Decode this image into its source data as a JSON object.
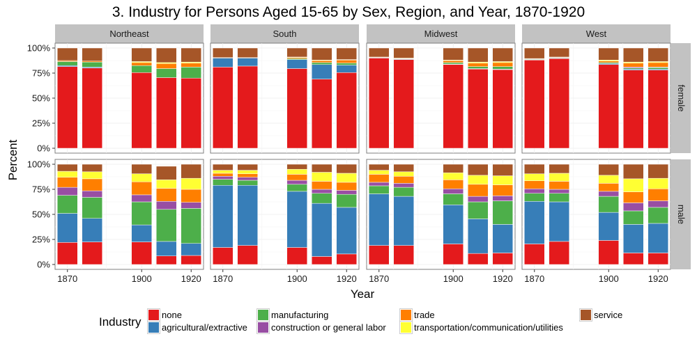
{
  "chart_data": {
    "type": "bar",
    "stacked": true,
    "title": "3. Industry for Persons Aged 15-65 by Sex, Region, and Year, 1870-1920",
    "xlabel": "Year",
    "ylabel": "Percent",
    "ylim": [
      0,
      1
    ],
    "yticks": [
      "0%",
      "25%",
      "50%",
      "75%",
      "100%"
    ],
    "xticks": [
      "1870",
      "1900",
      "1920"
    ],
    "years": [
      1870,
      1880,
      1900,
      1910,
      1920
    ],
    "columns": [
      "Northeast",
      "South",
      "Midwest",
      "West"
    ],
    "rows": [
      "female",
      "male"
    ],
    "grid": true,
    "legend": {
      "title": "Industry",
      "position": "bottom",
      "order": [
        "none",
        "agricultural/extractive",
        "manufacturing",
        "construction or general labor",
        "trade",
        "transportation/communication/utilities",
        "service"
      ]
    },
    "industries": [
      {
        "name": "none",
        "color": "#e41a1c"
      },
      {
        "name": "agricultural/extractive",
        "color": "#377eb8"
      },
      {
        "name": "manufacturing",
        "color": "#4daf4a"
      },
      {
        "name": "construction or general labor",
        "color": "#984ea3"
      },
      {
        "name": "trade",
        "color": "#ff7f00"
      },
      {
        "name": "transportation/communication/utilities",
        "color": "#ffff33"
      },
      {
        "name": "service",
        "color": "#a65628"
      }
    ],
    "panels": [
      {
        "region": "Northeast",
        "sex": "female",
        "values": [
          [
            0.815,
            0.01,
            0.04,
            0.0,
            0.01,
            0.0,
            0.125
          ],
          [
            0.8,
            0.01,
            0.05,
            0.0,
            0.01,
            0.0,
            0.13
          ],
          [
            0.755,
            0.0,
            0.07,
            0.0,
            0.03,
            0.01,
            0.135
          ],
          [
            0.705,
            0.0,
            0.09,
            0.0,
            0.05,
            0.01,
            0.145
          ],
          [
            0.7,
            0.0,
            0.11,
            0.0,
            0.04,
            0.01,
            0.14
          ]
        ]
      },
      {
        "region": "South",
        "sex": "female",
        "values": [
          [
            0.81,
            0.09,
            0.0,
            0.0,
            0.005,
            0.0,
            0.095
          ],
          [
            0.82,
            0.08,
            0.0,
            0.0,
            0.005,
            0.0,
            0.095
          ],
          [
            0.795,
            0.09,
            0.01,
            0.0,
            0.01,
            0.005,
            0.09
          ],
          [
            0.69,
            0.145,
            0.02,
            0.0,
            0.02,
            0.005,
            0.12
          ],
          [
            0.755,
            0.075,
            0.02,
            0.0,
            0.03,
            0.005,
            0.115
          ]
        ]
      },
      {
        "region": "Midwest",
        "sex": "female",
        "values": [
          [
            0.9,
            0.005,
            0.0,
            0.0,
            0.005,
            0.0,
            0.09
          ],
          [
            0.885,
            0.005,
            0.005,
            0.0,
            0.005,
            0.0,
            0.1
          ],
          [
            0.835,
            0.005,
            0.015,
            0.0,
            0.02,
            0.005,
            0.12
          ],
          [
            0.79,
            0.005,
            0.02,
            0.0,
            0.035,
            0.01,
            0.14
          ],
          [
            0.785,
            0.005,
            0.025,
            0.0,
            0.04,
            0.01,
            0.135
          ]
        ]
      },
      {
        "region": "West",
        "sex": "female",
        "values": [
          [
            0.88,
            0.005,
            0.005,
            0.0,
            0.005,
            0.0,
            0.105
          ],
          [
            0.895,
            0.005,
            0.005,
            0.0,
            0.005,
            0.0,
            0.09
          ],
          [
            0.835,
            0.01,
            0.01,
            0.0,
            0.015,
            0.01,
            0.12
          ],
          [
            0.78,
            0.01,
            0.01,
            0.01,
            0.04,
            0.01,
            0.14
          ],
          [
            0.78,
            0.01,
            0.015,
            0.005,
            0.045,
            0.01,
            0.135
          ]
        ]
      },
      {
        "region": "Northeast",
        "sex": "male",
        "values": [
          [
            0.22,
            0.29,
            0.18,
            0.08,
            0.1,
            0.06,
            0.07
          ],
          [
            0.225,
            0.235,
            0.21,
            0.065,
            0.12,
            0.07,
            0.075
          ],
          [
            0.225,
            0.17,
            0.23,
            0.07,
            0.13,
            0.08,
            0.095
          ],
          [
            0.085,
            0.145,
            0.32,
            0.08,
            0.13,
            0.085,
            0.135
          ],
          [
            0.09,
            0.12,
            0.35,
            0.06,
            0.13,
            0.11,
            0.14
          ]
        ]
      },
      {
        "region": "South",
        "sex": "male",
        "values": [
          [
            0.17,
            0.62,
            0.06,
            0.03,
            0.03,
            0.03,
            0.06
          ],
          [
            0.19,
            0.6,
            0.05,
            0.03,
            0.035,
            0.035,
            0.06
          ],
          [
            0.17,
            0.56,
            0.07,
            0.04,
            0.06,
            0.05,
            0.05
          ],
          [
            0.08,
            0.53,
            0.1,
            0.04,
            0.08,
            0.09,
            0.08
          ],
          [
            0.105,
            0.465,
            0.13,
            0.04,
            0.08,
            0.09,
            0.09
          ]
        ]
      },
      {
        "region": "Midwest",
        "sex": "male",
        "values": [
          [
            0.19,
            0.515,
            0.08,
            0.035,
            0.08,
            0.04,
            0.06
          ],
          [
            0.19,
            0.49,
            0.09,
            0.04,
            0.07,
            0.045,
            0.075
          ],
          [
            0.205,
            0.39,
            0.11,
            0.05,
            0.09,
            0.07,
            0.085
          ],
          [
            0.11,
            0.345,
            0.17,
            0.055,
            0.12,
            0.09,
            0.11
          ],
          [
            0.115,
            0.285,
            0.235,
            0.05,
            0.11,
            0.09,
            0.115
          ]
        ]
      },
      {
        "region": "West",
        "sex": "male",
        "values": [
          [
            0.205,
            0.425,
            0.08,
            0.045,
            0.08,
            0.07,
            0.095
          ],
          [
            0.23,
            0.395,
            0.085,
            0.04,
            0.08,
            0.08,
            0.09
          ],
          [
            0.24,
            0.28,
            0.16,
            0.05,
            0.08,
            0.08,
            0.11
          ],
          [
            0.115,
            0.285,
            0.135,
            0.08,
            0.11,
            0.13,
            0.145
          ],
          [
            0.115,
            0.295,
            0.16,
            0.065,
            0.12,
            0.105,
            0.14
          ]
        ]
      }
    ]
  }
}
